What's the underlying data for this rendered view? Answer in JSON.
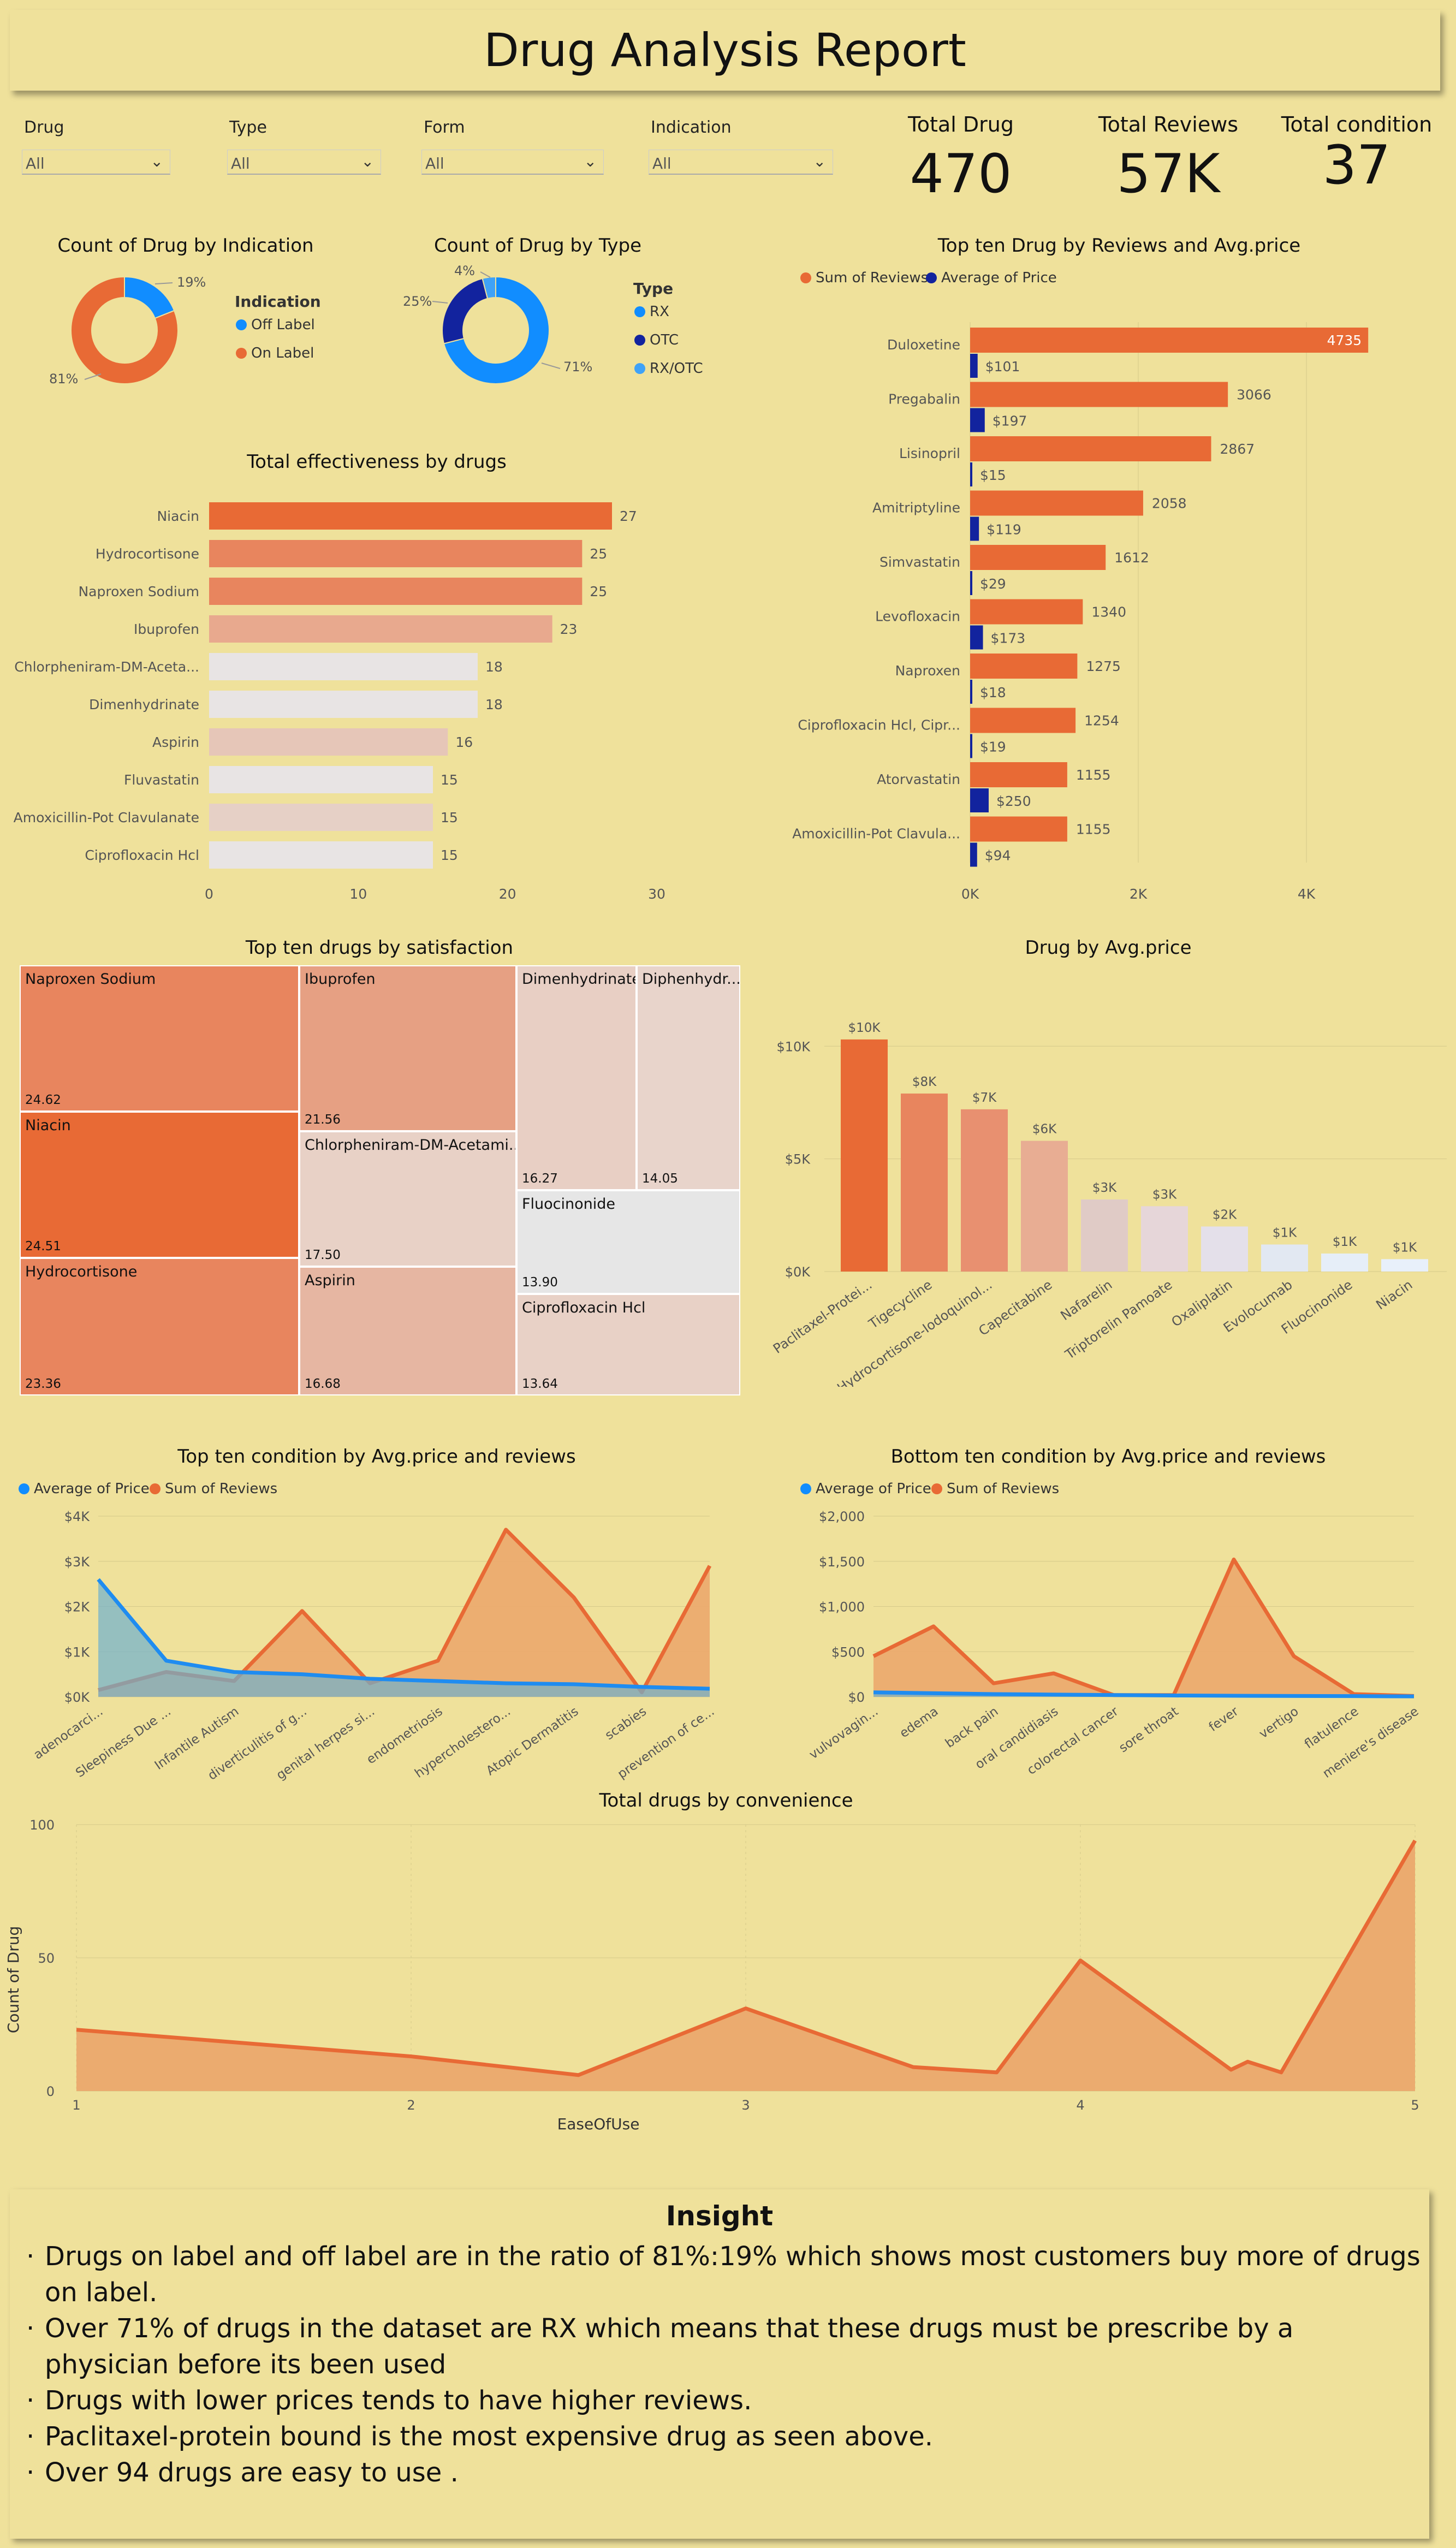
{
  "report_title": "Drug Analysis Report",
  "slicers": [
    {
      "label": "Drug",
      "value": "All"
    },
    {
      "label": "Type",
      "value": "All"
    },
    {
      "label": "Form",
      "value": "All"
    },
    {
      "label": "Indication",
      "value": "All"
    }
  ],
  "kpis": [
    {
      "label": "Total Drug",
      "value": "470"
    },
    {
      "label": "Total Reviews",
      "value": "57K"
    },
    {
      "label": "Total condition",
      "value": "37"
    }
  ],
  "colors": {
    "orange": "#e86a35",
    "blue": "#118dff",
    "navy": "#12239e",
    "lightblue": "#3fa2f7"
  },
  "chart_data": [
    {
      "id": "indication_donut",
      "type": "pie",
      "title": "Count of Drug by Indication",
      "legend_title": "Indication",
      "slices": [
        {
          "name": "Off Label",
          "value": 19,
          "label": "19%",
          "color": "#118dff"
        },
        {
          "name": "On Label",
          "value": 81,
          "label": "81%",
          "color": "#e86a35"
        }
      ]
    },
    {
      "id": "type_donut",
      "type": "pie",
      "title": "Count of Drug by Type",
      "legend_title": "Type",
      "slices": [
        {
          "name": "RX",
          "value": 71,
          "label": "71%",
          "color": "#118dff"
        },
        {
          "name": "OTC",
          "value": 25,
          "label": "25%",
          "color": "#12239e"
        },
        {
          "name": "RX/OTC",
          "value": 4,
          "label": "4%",
          "color": "#3fa2f7"
        }
      ]
    },
    {
      "id": "effectiveness",
      "type": "bar",
      "title": "Total effectiveness by drugs",
      "categories": [
        "Niacin",
        "Hydrocortisone",
        "Naproxen Sodium",
        "Ibuprofen",
        "Chlorpheniram-DM-Aceta...",
        "Dimenhydrinate",
        "Aspirin",
        "Fluvastatin",
        "Amoxicillin-Pot Clavulanate",
        "Ciprofloxacin Hcl"
      ],
      "values": [
        27,
        25,
        25,
        23,
        18,
        18,
        16,
        15,
        15,
        15
      ],
      "xlim": [
        0,
        30
      ],
      "xticks": [
        "0",
        "10",
        "20",
        "30"
      ]
    },
    {
      "id": "top_reviews",
      "type": "bar",
      "title": "Top ten Drug by Reviews and Avg.price",
      "categories": [
        "Duloxetine",
        "Pregabalin",
        "Lisinopril",
        "Amitriptyline",
        "Simvastatin",
        "Levofloxacin",
        "Naproxen",
        "Ciprofloxacin Hcl, Cipr...",
        "Atorvastatin",
        "Amoxicillin-Pot Clavula..."
      ],
      "series": [
        {
          "name": "Sum of Reviews",
          "values": [
            4735,
            3066,
            2867,
            2058,
            1612,
            1340,
            1275,
            1254,
            1155,
            1155
          ],
          "labels": [
            "4735",
            "3066",
            "2867",
            "2058",
            "1612",
            "1340",
            "1275",
            "1254",
            "1155",
            "1155"
          ]
        },
        {
          "name": "Average of Price",
          "values": [
            101,
            197,
            15,
            119,
            29,
            173,
            18,
            19,
            250,
            94
          ],
          "labels": [
            "$101",
            "$197",
            "$15",
            "$119",
            "$29",
            "$173",
            "$18",
            "$19",
            "$250",
            "$94"
          ]
        }
      ],
      "xlim": [
        0,
        5000
      ],
      "xticks": [
        "0K",
        "2K",
        "4K"
      ]
    },
    {
      "id": "satisfaction",
      "type": "heatmap",
      "title": "Top ten drugs by satisfaction",
      "cells": [
        {
          "name": "Naproxen Sodium",
          "value": "24.62",
          "color": "#e8855e"
        },
        {
          "name": "Niacin",
          "value": "24.51",
          "color": "#e86a35"
        },
        {
          "name": "Hydrocortisone",
          "value": "23.36",
          "color": "#e8855e"
        },
        {
          "name": "Ibuprofen",
          "value": "21.56",
          "color": "#e6a083"
        },
        {
          "name": "Chlorpheniram-DM-Acetami...",
          "value": "17.50",
          "color": "#e8d1c6"
        },
        {
          "name": "Aspirin",
          "value": "16.68",
          "color": "#e6b6a2"
        },
        {
          "name": "Dimenhydrinate",
          "value": "16.27",
          "color": "#e8cfc4"
        },
        {
          "name": "Diphenhydr...",
          "value": "14.05",
          "color": "#e8d4cb"
        },
        {
          "name": "Fluocinonide",
          "value": "13.90",
          "color": "#e6e6e6"
        },
        {
          "name": "Ciprofloxacin Hcl",
          "value": "13.64",
          "color": "#e8d1c6"
        }
      ]
    },
    {
      "id": "avg_price",
      "type": "bar",
      "title": "Drug by Avg.price",
      "categories": [
        "Paclitaxel-Protei...",
        "Tigecycline",
        "Hydrocortisone-Iodoquinol...",
        "Capecitabine",
        "Nafarelin",
        "Triptorelin Pamoate",
        "Oxaliplatin",
        "Evolocumab",
        "Fluocinonide",
        "Niacin"
      ],
      "values": [
        10300,
        7900,
        7200,
        5800,
        3200,
        2900,
        2000,
        1200,
        800,
        550
      ],
      "labels": [
        "$10K",
        "$8K",
        "$7K",
        "$6K",
        "$3K",
        "$3K",
        "$2K",
        "$1K",
        "$1K",
        "$1K"
      ],
      "colors": [
        "#e86a35",
        "#e8855e",
        "#e89070",
        "#e8ad93",
        "#e0cbc6",
        "#e6d6d9",
        "#e4e0ea",
        "#e2e8f2",
        "#e6eef8",
        "#e8f0fa"
      ],
      "ylim": [
        0,
        11000
      ],
      "yticks": [
        "$0K",
        "$5K",
        "$10K"
      ]
    },
    {
      "id": "top_condition",
      "type": "area",
      "title": "Top ten condition by Avg.price and reviews",
      "categories": [
        "adenocarci...",
        "Sleepiness Due ...",
        "Infantile Autism",
        "diverticulitis of g...",
        "genital herpes si...",
        "endometriosis",
        "hypercholestero...",
        "Atopic Dermatitis",
        "scabies",
        "prevention of ce..."
      ],
      "series": [
        {
          "name": "Average of Price",
          "values": [
            2600,
            800,
            550,
            500,
            400,
            350,
            300,
            280,
            220,
            180
          ]
        },
        {
          "name": "Sum of Reviews",
          "values": [
            150,
            550,
            350,
            1900,
            300,
            800,
            3700,
            2200,
            100,
            2900
          ]
        }
      ],
      "ylim": [
        0,
        4000
      ],
      "yticks": [
        "$0K",
        "$1K",
        "$2K",
        "$3K",
        "$4K"
      ]
    },
    {
      "id": "bottom_condition",
      "type": "area",
      "title": "Bottom ten condition by Avg.price and reviews",
      "categories": [
        "vulvovagin...",
        "edema",
        "back pain",
        "oral candidiasis",
        "colorectal cancer",
        "sore throat",
        "fever",
        "vertigo",
        "flatulence",
        "meniere's disease"
      ],
      "series": [
        {
          "name": "Average of Price",
          "values": [
            50,
            40,
            30,
            25,
            20,
            15,
            12,
            10,
            8,
            5
          ]
        },
        {
          "name": "Sum of Reviews",
          "values": [
            450,
            780,
            150,
            260,
            20,
            20,
            1520,
            450,
            30,
            10
          ]
        }
      ],
      "ylim": [
        0,
        2000
      ],
      "yticks": [
        "$0",
        "$500",
        "$1,000",
        "$1,500",
        "$2,000"
      ]
    },
    {
      "id": "convenience",
      "type": "area",
      "title": "Total drugs by convenience",
      "xlabel": "EaseOfUse",
      "ylabel": "Count of Drug",
      "x": [
        1,
        1.5,
        2,
        2.5,
        3,
        3.5,
        3.75,
        4,
        4.45,
        4.5,
        4.6,
        5
      ],
      "y": [
        23,
        18,
        13,
        6,
        31,
        9,
        7,
        49,
        8,
        11,
        7,
        94
      ],
      "xlim": [
        1,
        5
      ],
      "ylim": [
        0,
        100
      ],
      "xticks": [
        "1",
        "2",
        "3",
        "4",
        "5"
      ],
      "yticks": [
        "0",
        "50",
        "100"
      ]
    }
  ],
  "insight": {
    "title": "Insight",
    "items": [
      "Drugs on label and off label are in the ratio of 81%:19% which shows most customers buy more of drugs on label.",
      "Over 71% of drugs in the dataset are RX which means that these drugs must be prescribe by a physician before its been used",
      "Drugs with lower prices tends to have higher reviews.",
      "Paclitaxel-protein bound is the most expensive drug as seen above.",
      "Over 94 drugs are easy to use ."
    ]
  }
}
